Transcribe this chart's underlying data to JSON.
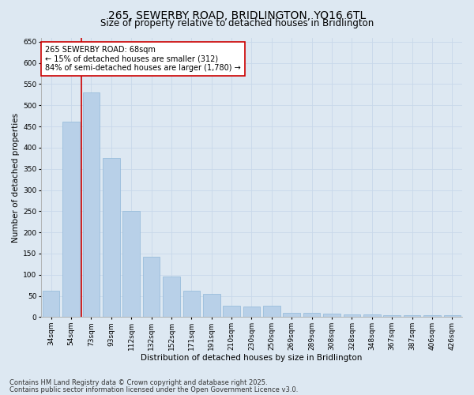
{
  "title_line1": "265, SEWERBY ROAD, BRIDLINGTON, YO16 6TL",
  "title_line2": "Size of property relative to detached houses in Bridlington",
  "xlabel": "Distribution of detached houses by size in Bridlington",
  "ylabel": "Number of detached properties",
  "categories": [
    "34sqm",
    "54sqm",
    "73sqm",
    "93sqm",
    "112sqm",
    "132sqm",
    "152sqm",
    "171sqm",
    "191sqm",
    "210sqm",
    "230sqm",
    "250sqm",
    "269sqm",
    "289sqm",
    "308sqm",
    "328sqm",
    "348sqm",
    "367sqm",
    "387sqm",
    "406sqm",
    "426sqm"
  ],
  "values": [
    62,
    462,
    530,
    375,
    250,
    142,
    95,
    62,
    55,
    27,
    25,
    27,
    10,
    11,
    8,
    7,
    7,
    5,
    5,
    5,
    4
  ],
  "bar_color": "#b8d0e8",
  "bar_edge_color": "#90b8d8",
  "grid_color": "#c8d8ea",
  "background_color": "#dde8f2",
  "vline_color": "#cc0000",
  "vline_x_index": 1.5,
  "annotation_text": "265 SEWERBY ROAD: 68sqm\n← 15% of detached houses are smaller (312)\n84% of semi-detached houses are larger (1,780) →",
  "annotation_box_facecolor": "#ffffff",
  "annotation_box_edgecolor": "#cc0000",
  "ylim": [
    0,
    660
  ],
  "yticks": [
    0,
    50,
    100,
    150,
    200,
    250,
    300,
    350,
    400,
    450,
    500,
    550,
    600,
    650
  ],
  "footer_line1": "Contains HM Land Registry data © Crown copyright and database right 2025.",
  "footer_line2": "Contains public sector information licensed under the Open Government Licence v3.0.",
  "title_fontsize": 10,
  "subtitle_fontsize": 8.5,
  "axis_label_fontsize": 7.5,
  "tick_fontsize": 6.5,
  "annotation_fontsize": 7,
  "footer_fontsize": 6
}
